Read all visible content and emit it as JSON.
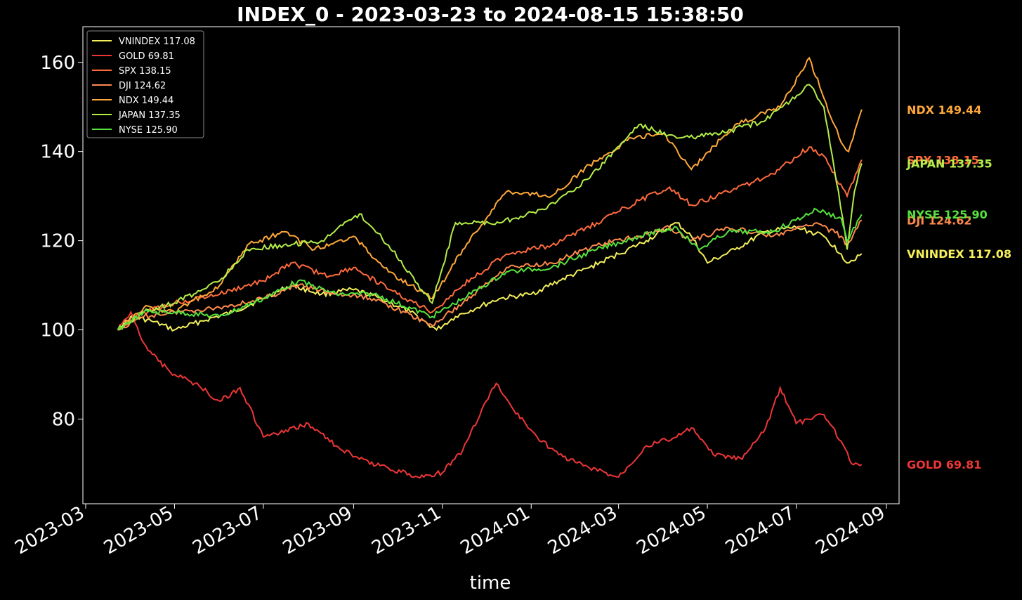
{
  "chart_data": {
    "type": "line",
    "title": "INDEX_0 - 2023-03-23 to 2024-08-15 15:38:50",
    "xlabel": "time",
    "ylabel": "",
    "x_range": [
      "2023-03-01",
      "2024-09-01"
    ],
    "ylim": [
      61,
      168
    ],
    "x_ticks": [
      "2023-03",
      "2023-05",
      "2023-07",
      "2023-09",
      "2023-11",
      "2024-01",
      "2024-03",
      "2024-05",
      "2024-07",
      "2024-09"
    ],
    "y_ticks": [
      80,
      100,
      120,
      140,
      160
    ],
    "grid": false,
    "legend_position": "top-left",
    "background": "#000000",
    "series": [
      {
        "name": "VNINDEX",
        "last_value": 117.08,
        "legend_label": "VNINDEX 117.08",
        "color": "#f5f05a",
        "points": [
          [
            "2023-03-23",
            100
          ],
          [
            "2023-04-01",
            103
          ],
          [
            "2023-04-15",
            102
          ],
          [
            "2023-05-01",
            100
          ],
          [
            "2023-05-20",
            102
          ],
          [
            "2023-06-10",
            104
          ],
          [
            "2023-07-01",
            107
          ],
          [
            "2023-07-20",
            110
          ],
          [
            "2023-08-10",
            108
          ],
          [
            "2023-09-01",
            109
          ],
          [
            "2023-09-20",
            107
          ],
          [
            "2023-10-10",
            104
          ],
          [
            "2023-10-28",
            100
          ],
          [
            "2023-11-10",
            103
          ],
          [
            "2023-11-25",
            105
          ],
          [
            "2023-12-10",
            107
          ],
          [
            "2024-01-01",
            108
          ],
          [
            "2024-01-20",
            111
          ],
          [
            "2024-02-10",
            114
          ],
          [
            "2024-03-01",
            117
          ],
          [
            "2024-03-20",
            120
          ],
          [
            "2024-04-10",
            124
          ],
          [
            "2024-04-20",
            121
          ],
          [
            "2024-05-01",
            115
          ],
          [
            "2024-05-20",
            118
          ],
          [
            "2024-06-10",
            122
          ],
          [
            "2024-07-01",
            123
          ],
          [
            "2024-07-20",
            121
          ],
          [
            "2024-08-01",
            117
          ],
          [
            "2024-08-05",
            115
          ],
          [
            "2024-08-15",
            117.08
          ]
        ]
      },
      {
        "name": "GOLD",
        "last_value": 69.81,
        "legend_label": "GOLD 69.81",
        "color": "#ee3636",
        "points": [
          [
            "2023-03-23",
            100
          ],
          [
            "2023-04-01",
            104
          ],
          [
            "2023-04-10",
            97
          ],
          [
            "2023-04-20",
            93
          ],
          [
            "2023-05-01",
            90
          ],
          [
            "2023-05-15",
            88
          ],
          [
            "2023-06-01",
            84
          ],
          [
            "2023-06-15",
            87
          ],
          [
            "2023-07-01",
            76
          ],
          [
            "2023-07-15",
            77
          ],
          [
            "2023-08-01",
            79
          ],
          [
            "2023-08-20",
            74
          ],
          [
            "2023-09-05",
            71
          ],
          [
            "2023-09-25",
            69
          ],
          [
            "2023-10-15",
            67
          ],
          [
            "2023-11-01",
            68
          ],
          [
            "2023-11-15",
            73
          ],
          [
            "2023-12-01",
            84
          ],
          [
            "2023-12-08",
            88
          ],
          [
            "2023-12-20",
            82
          ],
          [
            "2024-01-05",
            76
          ],
          [
            "2024-01-20",
            72
          ],
          [
            "2024-02-10",
            69
          ],
          [
            "2024-03-01",
            67
          ],
          [
            "2024-03-20",
            74
          ],
          [
            "2024-04-10",
            76
          ],
          [
            "2024-04-20",
            78
          ],
          [
            "2024-05-05",
            72
          ],
          [
            "2024-05-25",
            71
          ],
          [
            "2024-06-10",
            78
          ],
          [
            "2024-06-20",
            87
          ],
          [
            "2024-07-01",
            79
          ],
          [
            "2024-07-20",
            81
          ],
          [
            "2024-08-01",
            75
          ],
          [
            "2024-08-08",
            70
          ],
          [
            "2024-08-15",
            69.81
          ]
        ]
      },
      {
        "name": "SPX",
        "last_value": 138.15,
        "legend_label": "SPX 138.15",
        "color": "#ff6a3d",
        "points": [
          [
            "2023-03-23",
            100
          ],
          [
            "2023-04-10",
            104
          ],
          [
            "2023-05-01",
            106
          ],
          [
            "2023-06-01",
            108
          ],
          [
            "2023-07-01",
            111
          ],
          [
            "2023-07-20",
            115
          ],
          [
            "2023-08-15",
            112
          ],
          [
            "2023-09-01",
            114
          ],
          [
            "2023-10-01",
            108
          ],
          [
            "2023-10-25",
            104
          ],
          [
            "2023-11-15",
            110
          ],
          [
            "2023-12-15",
            117
          ],
          [
            "2024-01-15",
            119
          ],
          [
            "2024-02-15",
            124
          ],
          [
            "2024-03-15",
            129
          ],
          [
            "2024-04-05",
            132
          ],
          [
            "2024-04-20",
            128
          ],
          [
            "2024-05-15",
            131
          ],
          [
            "2024-06-15",
            135
          ],
          [
            "2024-07-10",
            141
          ],
          [
            "2024-07-20",
            139
          ],
          [
            "2024-08-05",
            130
          ],
          [
            "2024-08-15",
            138.15
          ]
        ]
      },
      {
        "name": "DJI",
        "last_value": 124.62,
        "legend_label": "DJI 124.62",
        "color": "#ff8a4d",
        "points": [
          [
            "2023-03-23",
            100
          ],
          [
            "2023-04-10",
            103
          ],
          [
            "2023-05-01",
            104
          ],
          [
            "2023-06-01",
            105
          ],
          [
            "2023-07-01",
            107
          ],
          [
            "2023-07-25",
            110
          ],
          [
            "2023-08-20",
            108
          ],
          [
            "2023-09-15",
            107
          ],
          [
            "2023-10-25",
            101
          ],
          [
            "2023-11-15",
            106
          ],
          [
            "2023-12-15",
            114
          ],
          [
            "2024-01-15",
            115
          ],
          [
            "2024-02-15",
            119
          ],
          [
            "2024-03-15",
            121
          ],
          [
            "2024-04-05",
            123
          ],
          [
            "2024-04-20",
            120
          ],
          [
            "2024-05-15",
            123
          ],
          [
            "2024-06-15",
            121
          ],
          [
            "2024-07-15",
            124
          ],
          [
            "2024-08-01",
            121
          ],
          [
            "2024-08-05",
            119
          ],
          [
            "2024-08-15",
            124.62
          ]
        ]
      },
      {
        "name": "NDX",
        "last_value": 149.44,
        "legend_label": "NDX 149.44",
        "color": "#ffa83a",
        "points": [
          [
            "2023-03-23",
            100
          ],
          [
            "2023-04-10",
            105
          ],
          [
            "2023-05-01",
            104
          ],
          [
            "2023-06-01",
            110
          ],
          [
            "2023-06-20",
            119
          ],
          [
            "2023-07-15",
            122
          ],
          [
            "2023-08-05",
            118
          ],
          [
            "2023-09-01",
            121
          ],
          [
            "2023-09-25",
            113
          ],
          [
            "2023-10-25",
            107
          ],
          [
            "2023-11-15",
            118
          ],
          [
            "2023-12-15",
            131
          ],
          [
            "2024-01-15",
            130
          ],
          [
            "2024-02-10",
            137
          ],
          [
            "2024-03-10",
            143
          ],
          [
            "2024-04-01",
            144
          ],
          [
            "2024-04-20",
            136
          ],
          [
            "2024-05-20",
            146
          ],
          [
            "2024-06-20",
            150
          ],
          [
            "2024-07-10",
            161
          ],
          [
            "2024-07-20",
            152
          ],
          [
            "2024-08-01",
            142
          ],
          [
            "2024-08-06",
            140
          ],
          [
            "2024-08-15",
            149.44
          ]
        ]
      },
      {
        "name": "JAPAN",
        "last_value": 137.35,
        "legend_label": "JAPAN 137.35",
        "color": "#b5ee48",
        "points": [
          [
            "2023-03-23",
            100
          ],
          [
            "2023-04-10",
            104
          ],
          [
            "2023-05-01",
            106
          ],
          [
            "2023-06-01",
            111
          ],
          [
            "2023-06-20",
            118
          ],
          [
            "2023-07-15",
            119
          ],
          [
            "2023-08-10",
            120
          ],
          [
            "2023-09-05",
            126
          ],
          [
            "2023-09-25",
            119
          ],
          [
            "2023-10-25",
            106
          ],
          [
            "2023-11-10",
            124
          ],
          [
            "2023-12-10",
            124
          ],
          [
            "2024-01-10",
            127
          ],
          [
            "2024-02-10",
            134
          ],
          [
            "2024-03-15",
            146
          ],
          [
            "2024-04-10",
            143
          ],
          [
            "2024-05-10",
            144
          ],
          [
            "2024-06-10",
            147
          ],
          [
            "2024-07-10",
            155
          ],
          [
            "2024-07-20",
            150
          ],
          [
            "2024-08-02",
            125
          ],
          [
            "2024-08-05",
            118
          ],
          [
            "2024-08-10",
            131
          ],
          [
            "2024-08-15",
            137.35
          ]
        ]
      },
      {
        "name": "NYSE",
        "last_value": 125.9,
        "legend_label": "NYSE 125.90",
        "color": "#55e23e",
        "points": [
          [
            "2023-03-23",
            100
          ],
          [
            "2023-04-10",
            104
          ],
          [
            "2023-05-01",
            104
          ],
          [
            "2023-06-01",
            103
          ],
          [
            "2023-07-01",
            107
          ],
          [
            "2023-07-25",
            111
          ],
          [
            "2023-08-20",
            108
          ],
          [
            "2023-09-15",
            108
          ],
          [
            "2023-10-25",
            103
          ],
          [
            "2023-11-15",
            107
          ],
          [
            "2023-12-15",
            113
          ],
          [
            "2024-01-15",
            114
          ],
          [
            "2024-02-15",
            118
          ],
          [
            "2024-03-15",
            121
          ],
          [
            "2024-04-10",
            123
          ],
          [
            "2024-04-25",
            118
          ],
          [
            "2024-05-15",
            122
          ],
          [
            "2024-06-15",
            122
          ],
          [
            "2024-07-15",
            127
          ],
          [
            "2024-08-01",
            125
          ],
          [
            "2024-08-05",
            120
          ],
          [
            "2024-08-15",
            125.9
          ]
        ]
      }
    ]
  }
}
